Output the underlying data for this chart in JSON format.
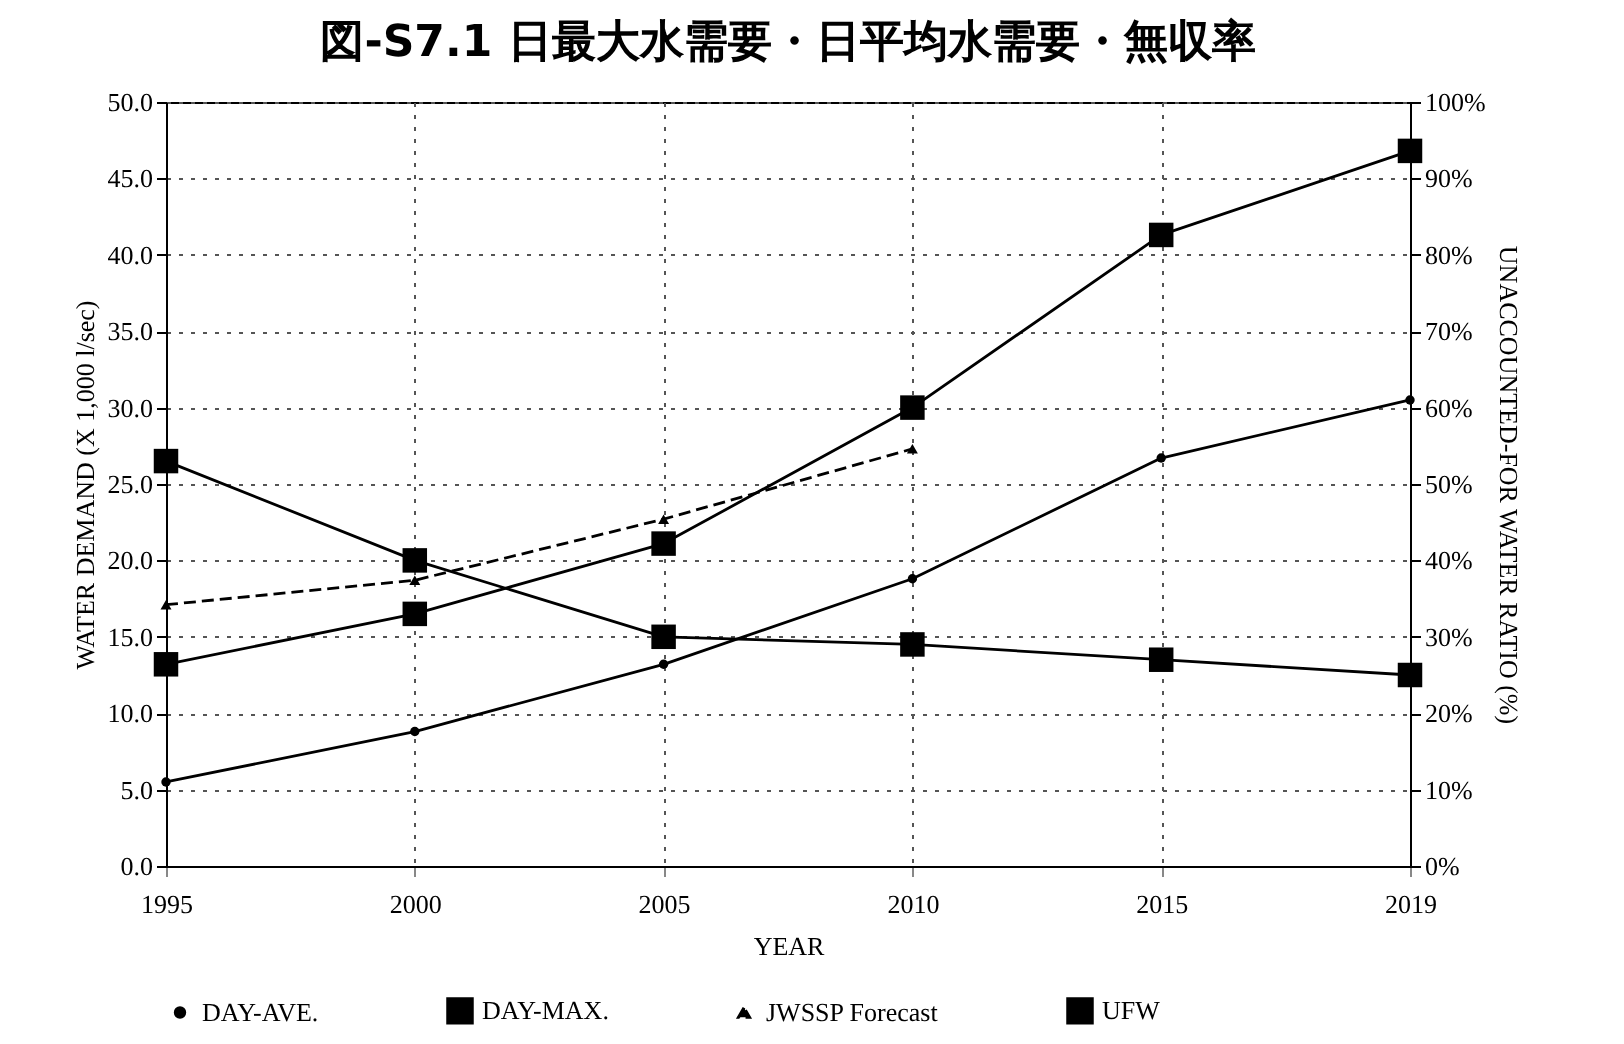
{
  "chart_data": {
    "type": "line",
    "title": "図-S7.1 日最大水需要・日平均水需要・無収率",
    "xlabel": "YEAR",
    "ylabel": "WATER DEMAND (X 1,000 l/sec)",
    "y2label": "UNACCOUNTED-FOR WATER RATIO (%)",
    "categories": [
      "1995",
      "2000",
      "2005",
      "2010",
      "2015",
      "2019"
    ],
    "series": [
      {
        "name": "DAY-AVE.",
        "color": "#000000",
        "marker": "circle",
        "values": [
          5.5,
          8.8,
          13.2,
          18.8,
          26.7,
          30.5
        ]
      },
      {
        "name": "DAY-MAX.",
        "color": "#000000",
        "marker": "square",
        "values": [
          13.2,
          16.5,
          21.1,
          30.0,
          41.3,
          46.8
        ]
      },
      {
        "name": "JWSSP Forecast",
        "color": "#000000",
        "marker": "triangle",
        "line_style": "dashed",
        "values": [
          17.1,
          18.7,
          22.7,
          27.3,
          null,
          null
        ]
      },
      {
        "name": "UFW",
        "color": "#000000",
        "marker": "square",
        "axis": "y2",
        "values": [
          53,
          40,
          30,
          29,
          27,
          25
        ]
      }
    ],
    "ylim": [
      0,
      50
    ],
    "yticks": [
      {
        "value": 0,
        "label": "0.0"
      },
      {
        "value": 5,
        "label": "5.0"
      },
      {
        "value": 10,
        "label": "10.0"
      },
      {
        "value": 15,
        "label": "15.0"
      },
      {
        "value": 20,
        "label": "20.0"
      },
      {
        "value": 25,
        "label": "25.0"
      },
      {
        "value": 30,
        "label": "30.0"
      },
      {
        "value": 35,
        "label": "35.0"
      },
      {
        "value": 40,
        "label": "40.0"
      },
      {
        "value": 45,
        "label": "45.0"
      },
      {
        "value": 50,
        "label": "50.0"
      }
    ],
    "y2lim": [
      0,
      100
    ],
    "y2ticks": [
      {
        "value": 0,
        "label": "0%"
      },
      {
        "value": 10,
        "label": "10%"
      },
      {
        "value": 20,
        "label": "20%"
      },
      {
        "value": 30,
        "label": "30%"
      },
      {
        "value": 40,
        "label": "40%"
      },
      {
        "value": 50,
        "label": "50%"
      },
      {
        "value": 60,
        "label": "60%"
      },
      {
        "value": 70,
        "label": "70%"
      },
      {
        "value": 80,
        "label": "80%"
      },
      {
        "value": 90,
        "label": "90%"
      },
      {
        "value": 100,
        "label": "100%"
      }
    ],
    "grid": true,
    "legend": "bottom"
  }
}
